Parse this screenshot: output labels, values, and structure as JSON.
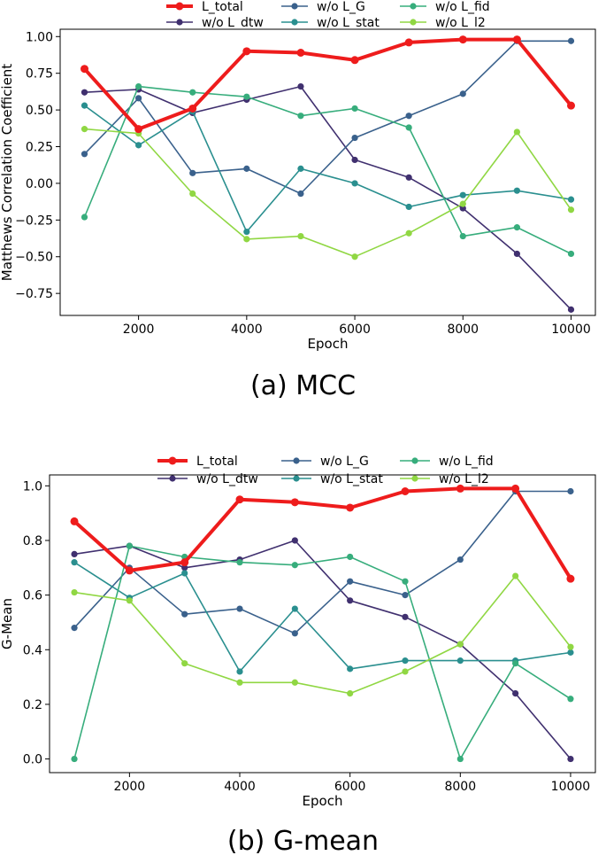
{
  "chart_data": [
    {
      "id": "mcc",
      "type": "line",
      "caption": "(a) MCC",
      "xlabel": "Epoch",
      "ylabel": "Matthews Correlation Coefficient",
      "x": [
        1000,
        2000,
        3000,
        4000,
        5000,
        6000,
        7000,
        8000,
        9000,
        10000
      ],
      "xticks": [
        2000,
        4000,
        6000,
        8000,
        10000
      ],
      "xtick_labels": [
        "2000",
        "4000",
        "6000",
        "8000",
        "10000"
      ],
      "ylim": [
        -0.9,
        1.05
      ],
      "yticks": [
        -0.75,
        -0.5,
        -0.25,
        0.0,
        0.25,
        0.5,
        0.75,
        1.0
      ],
      "ytick_labels": [
        "−0.75",
        "−0.50",
        "−0.25",
        "0.00",
        "0.25",
        "0.50",
        "0.75",
        "1.00"
      ],
      "legend_position": "top",
      "series": [
        {
          "name": "L_total",
          "color": "#ee1c1c",
          "values": [
            0.78,
            0.37,
            0.51,
            0.9,
            0.89,
            0.84,
            0.96,
            0.98,
            0.98,
            0.53
          ]
        },
        {
          "name": "w/o L_dtw",
          "color": "#40306f",
          "values": [
            0.62,
            0.64,
            0.48,
            0.57,
            0.66,
            0.16,
            0.04,
            -0.17,
            -0.48,
            -0.86
          ]
        },
        {
          "name": "w/o L_G",
          "color": "#3a618c",
          "values": [
            0.2,
            0.58,
            0.07,
            0.1,
            -0.07,
            0.31,
            0.46,
            0.61,
            0.97,
            0.97
          ]
        },
        {
          "name": "w/o L_stat",
          "color": "#2a8f8f",
          "values": [
            0.53,
            0.26,
            0.49,
            -0.33,
            0.1,
            0.0,
            -0.16,
            -0.08,
            -0.05,
            -0.11
          ]
        },
        {
          "name": "w/o L_fid",
          "color": "#37ad7c",
          "values": [
            -0.23,
            0.66,
            0.62,
            0.59,
            0.46,
            0.51,
            0.38,
            -0.36,
            -0.3,
            -0.48
          ]
        },
        {
          "name": "w/o L_l2",
          "color": "#90d743",
          "values": [
            0.37,
            0.34,
            -0.07,
            -0.38,
            -0.36,
            -0.5,
            -0.34,
            -0.14,
            0.35,
            -0.18
          ]
        }
      ]
    },
    {
      "id": "gmean",
      "type": "line",
      "caption": "(b) G-mean",
      "xlabel": "Epoch",
      "ylabel": "G-Mean",
      "x": [
        1000,
        2000,
        3000,
        4000,
        5000,
        6000,
        7000,
        8000,
        9000,
        10000
      ],
      "xticks": [
        2000,
        4000,
        6000,
        8000,
        10000
      ],
      "xtick_labels": [
        "2000",
        "4000",
        "6000",
        "8000",
        "10000"
      ],
      "ylim": [
        -0.05,
        1.04
      ],
      "yticks": [
        0.0,
        0.2,
        0.4,
        0.6,
        0.8,
        1.0
      ],
      "ytick_labels": [
        "0.0",
        "0.2",
        "0.4",
        "0.6",
        "0.8",
        "1.0"
      ],
      "legend_position": "top",
      "series": [
        {
          "name": "L_total",
          "color": "#ee1c1c",
          "values": [
            0.87,
            0.69,
            0.72,
            0.95,
            0.94,
            0.92,
            0.98,
            0.99,
            0.99,
            0.66
          ]
        },
        {
          "name": "w/o L_dtw",
          "color": "#40306f",
          "values": [
            0.75,
            0.78,
            0.7,
            0.73,
            0.8,
            0.58,
            0.52,
            0.42,
            0.24,
            0.0
          ]
        },
        {
          "name": "w/o L_G",
          "color": "#3a618c",
          "values": [
            0.48,
            0.7,
            0.53,
            0.55,
            0.46,
            0.65,
            0.6,
            0.73,
            0.98,
            0.98
          ]
        },
        {
          "name": "w/o L_stat",
          "color": "#2a8f8f",
          "values": [
            0.72,
            0.59,
            0.68,
            0.32,
            0.55,
            0.33,
            0.36,
            0.36,
            0.36,
            0.39
          ]
        },
        {
          "name": "w/o L_fid",
          "color": "#37ad7c",
          "values": [
            0.0,
            0.78,
            0.74,
            0.72,
            0.71,
            0.74,
            0.65,
            0.0,
            0.35,
            0.22
          ]
        },
        {
          "name": "w/o L_l2",
          "color": "#90d743",
          "values": [
            0.61,
            0.58,
            0.35,
            0.28,
            0.28,
            0.24,
            0.32,
            0.42,
            0.67,
            0.41
          ]
        }
      ]
    }
  ]
}
